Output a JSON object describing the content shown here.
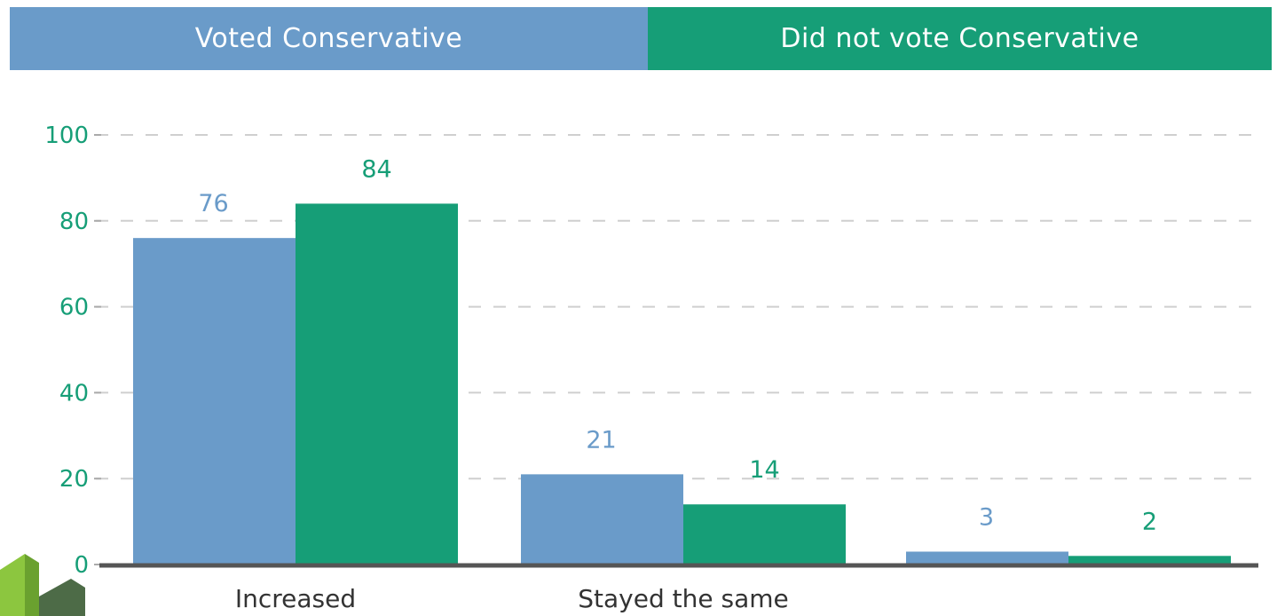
{
  "legend": [
    {
      "label": "Voted Conservative",
      "color": "#6a9bc9"
    },
    {
      "label": "Did not vote Conservative",
      "color": "#169e77"
    }
  ],
  "chart_data": {
    "type": "bar",
    "categories": [
      "Increased",
      "Stayed the same",
      ""
    ],
    "series": [
      {
        "name": "Voted Conservative",
        "values": [
          76,
          21,
          3
        ],
        "color": "#6a9bc9"
      },
      {
        "name": "Did not vote Conservative",
        "values": [
          84,
          14,
          2
        ],
        "color": "#169e77"
      }
    ],
    "ylim": [
      0,
      100
    ],
    "yticks": [
      0,
      20,
      40,
      60,
      80,
      100
    ],
    "grid": true,
    "legend_position": "top",
    "axis_label_color": "#169e77"
  }
}
